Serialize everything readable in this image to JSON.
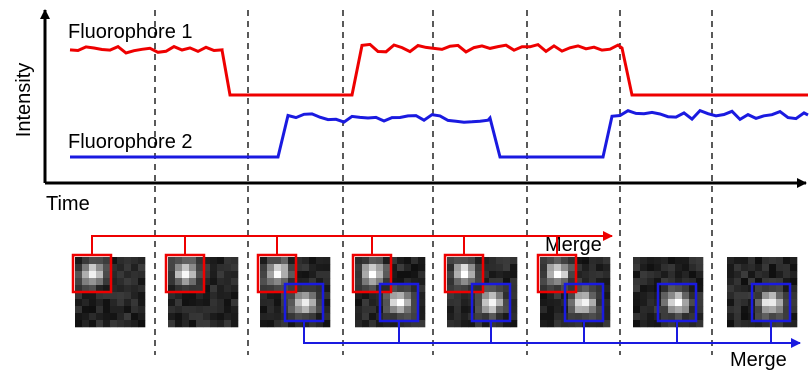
{
  "axes": {
    "y_label": "Intensity",
    "x_label": "Time"
  },
  "traces": [
    {
      "label": "Fluorophore 1"
    },
    {
      "label": "Fluorophore 2"
    }
  ],
  "merge": {
    "top": "Merge",
    "bottom": "Merge"
  }
}
